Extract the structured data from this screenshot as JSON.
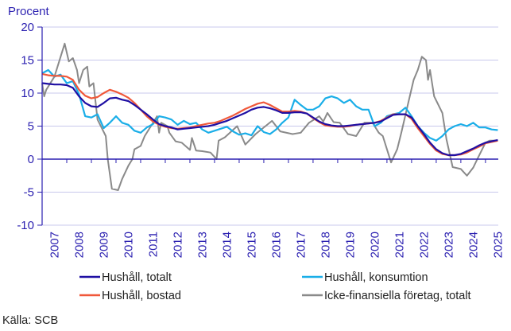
{
  "chart_data": {
    "type": "line",
    "ylabel": "Procent",
    "ylim": [
      -10,
      20
    ],
    "yticks": [
      20,
      15,
      10,
      5,
      0,
      -5,
      -10
    ],
    "xticks": [
      "2007",
      "2008",
      "2009",
      "2010",
      "2011",
      "2012",
      "2013",
      "2014",
      "2015",
      "2016",
      "2017",
      "2018",
      "2019",
      "2020",
      "2021",
      "2022",
      "2023",
      "2024",
      "2025"
    ],
    "grid": true,
    "legend_position": "bottom",
    "source": "Källa: SCB",
    "x": [
      "2007-01",
      "2007-04",
      "2007-07",
      "2007-10",
      "2008-01",
      "2008-04",
      "2008-07",
      "2008-10",
      "2009-01",
      "2009-04",
      "2009-07",
      "2009-10",
      "2010-01",
      "2010-04",
      "2010-07",
      "2010-10",
      "2011-01",
      "2011-04",
      "2011-07",
      "2011-10",
      "2012-01",
      "2012-04",
      "2012-07",
      "2012-10",
      "2013-01",
      "2013-04",
      "2013-07",
      "2013-10",
      "2014-01",
      "2014-04",
      "2014-07",
      "2014-10",
      "2015-01",
      "2015-04",
      "2015-07",
      "2015-10",
      "2016-01",
      "2016-04",
      "2016-07",
      "2016-10",
      "2017-01",
      "2017-04",
      "2017-07",
      "2017-10",
      "2018-01",
      "2018-04",
      "2018-07",
      "2018-10",
      "2019-01",
      "2019-04",
      "2019-07",
      "2019-10",
      "2020-01",
      "2020-04",
      "2020-07",
      "2020-10",
      "2021-01",
      "2021-04",
      "2021-07",
      "2021-10",
      "2022-01",
      "2022-04",
      "2022-07",
      "2022-10",
      "2023-01",
      "2023-04",
      "2023-07",
      "2023-10",
      "2024-01",
      "2024-04",
      "2024-07",
      "2024-10",
      "2025-01",
      "2025-04",
      "2025-07"
    ],
    "series": [
      {
        "name": "Hushåll, totalt",
        "color": "#1f0fa3",
        "values": [
          11.5,
          11.4,
          11.3,
          11.3,
          11.2,
          10.8,
          9.5,
          8.5,
          8.0,
          7.9,
          8.5,
          9.2,
          9.3,
          9.0,
          8.8,
          8.2,
          7.5,
          6.8,
          6.0,
          5.3,
          5.0,
          4.8,
          4.5,
          4.6,
          4.7,
          4.8,
          4.9,
          5.0,
          5.2,
          5.5,
          5.8,
          6.2,
          6.6,
          7.0,
          7.5,
          7.8,
          7.9,
          7.7,
          7.4,
          7.0,
          7.0,
          7.1,
          7.1,
          6.9,
          6.3,
          5.7,
          5.3,
          5.1,
          5.0,
          5.0,
          5.1,
          5.2,
          5.3,
          5.4,
          5.5,
          5.7,
          6.2,
          6.7,
          6.8,
          6.8,
          6.3,
          5.0,
          3.8,
          2.5,
          1.5,
          0.9,
          0.6,
          0.6,
          0.8,
          1.2,
          1.6,
          2.1,
          2.5,
          2.7,
          2.9
        ]
      },
      {
        "name": "Hushåll, konsumtion",
        "color": "#1aaee8",
        "values": [
          13.0,
          13.5,
          12.5,
          12.8,
          11.5,
          11.8,
          9.8,
          6.5,
          6.3,
          6.8,
          4.7,
          5.5,
          6.5,
          5.5,
          5.2,
          4.3,
          4.0,
          4.8,
          5.3,
          6.5,
          6.3,
          6.0,
          5.2,
          5.8,
          5.3,
          5.5,
          4.5,
          4.0,
          4.3,
          4.6,
          4.9,
          4.2,
          3.7,
          3.9,
          3.6,
          5.0,
          4.1,
          3.8,
          4.5,
          5.5,
          6.3,
          9.0,
          8.2,
          7.5,
          7.5,
          8.0,
          9.2,
          9.5,
          9.2,
          8.5,
          9.0,
          8.0,
          7.5,
          7.5,
          5.0,
          5.5,
          6.5,
          6.8,
          7.0,
          7.8,
          6.5,
          5.0,
          4.0,
          3.2,
          2.8,
          3.5,
          4.5,
          5.0,
          5.3,
          5.0,
          5.5,
          4.8,
          4.8,
          4.5,
          4.4
        ]
      },
      {
        "name": "Hushåll, bostad",
        "color": "#f0583a",
        "values": [
          12.9,
          12.7,
          12.6,
          12.6,
          12.5,
          12.0,
          10.5,
          9.6,
          9.2,
          9.4,
          10.0,
          10.5,
          10.2,
          9.8,
          9.3,
          8.5,
          7.5,
          6.5,
          5.7,
          5.2,
          4.9,
          4.7,
          4.6,
          4.7,
          4.8,
          5.0,
          5.2,
          5.4,
          5.5,
          5.8,
          6.2,
          6.6,
          7.1,
          7.6,
          8.0,
          8.4,
          8.6,
          8.2,
          7.7,
          7.2,
          7.2,
          7.3,
          7.2,
          6.9,
          6.2,
          5.6,
          5.1,
          5.0,
          4.9,
          4.9,
          5.0,
          5.2,
          5.3,
          5.4,
          5.5,
          5.8,
          6.3,
          6.8,
          6.8,
          6.8,
          6.1,
          4.7,
          3.5,
          2.3,
          1.3,
          0.8,
          0.6,
          0.6,
          0.7,
          1.0,
          1.5,
          1.9,
          2.4,
          2.6,
          2.8
        ]
      },
      {
        "name": "Icke-finansiella företag, totalt",
        "color": "#8a8a8a",
        "x": [
          "2007-01",
          "2007-02",
          "2007-03",
          "2007-07",
          "2007-12",
          "2008-02",
          "2008-04",
          "2008-06",
          "2008-07",
          "2008-09",
          "2008-11",
          "2008-12",
          "2009-02",
          "2009-04",
          "2009-08",
          "2009-09",
          "2009-11",
          "2010-02",
          "2010-04",
          "2010-07",
          "2010-09",
          "2010-10",
          "2011-01",
          "2011-03",
          "2011-06",
          "2011-09",
          "2011-10",
          "2011-11",
          "2012-02",
          "2012-03",
          "2012-06",
          "2012-09",
          "2013-01",
          "2013-02",
          "2013-04",
          "2013-07",
          "2013-11",
          "2014-02",
          "2014-03",
          "2014-06",
          "2014-12",
          "2015-04",
          "2015-09",
          "2016-05",
          "2016-09",
          "2017-03",
          "2017-07",
          "2017-11",
          "2018-04",
          "2018-06",
          "2018-08",
          "2018-11",
          "2019-02",
          "2019-06",
          "2019-10",
          "2020-02",
          "2020-06",
          "2020-09",
          "2020-11",
          "2021-03",
          "2021-06",
          "2021-08",
          "2021-11",
          "2022-02",
          "2022-04",
          "2022-06",
          "2022-08",
          "2022-09",
          "2022-10",
          "2022-12",
          "2023-04",
          "2023-06",
          "2023-09",
          "2024-01",
          "2024-04",
          "2024-07",
          "2024-09",
          "2025-01",
          "2025-03",
          "2025-06"
        ],
        "values": [
          11.5,
          9.5,
          10.5,
          12.5,
          17.5,
          14.8,
          15.3,
          13.5,
          11.5,
          13.5,
          14.0,
          11.0,
          11.5,
          6.0,
          3.5,
          0.0,
          -4.5,
          -4.7,
          -3.0,
          -1.0,
          0.0,
          1.5,
          2.0,
          3.5,
          5.0,
          6.5,
          4.0,
          5.5,
          5.0,
          4.0,
          2.7,
          2.5,
          1.4,
          3.2,
          1.3,
          1.2,
          1.0,
          0.0,
          2.8,
          3.3,
          5.0,
          2.2,
          3.8,
          5.8,
          4.2,
          3.8,
          4.0,
          5.5,
          6.5,
          5.7,
          7.0,
          5.6,
          5.5,
          3.8,
          3.5,
          5.5,
          5.5,
          4.0,
          3.5,
          -0.5,
          1.5,
          4.0,
          8.0,
          12.0,
          13.5,
          15.5,
          15.0,
          12.0,
          13.5,
          9.5,
          7.0,
          3.0,
          -1.2,
          -1.5,
          -2.5,
          -1.3,
          0.0,
          2.5,
          2.8,
          2.8
        ]
      }
    ]
  }
}
